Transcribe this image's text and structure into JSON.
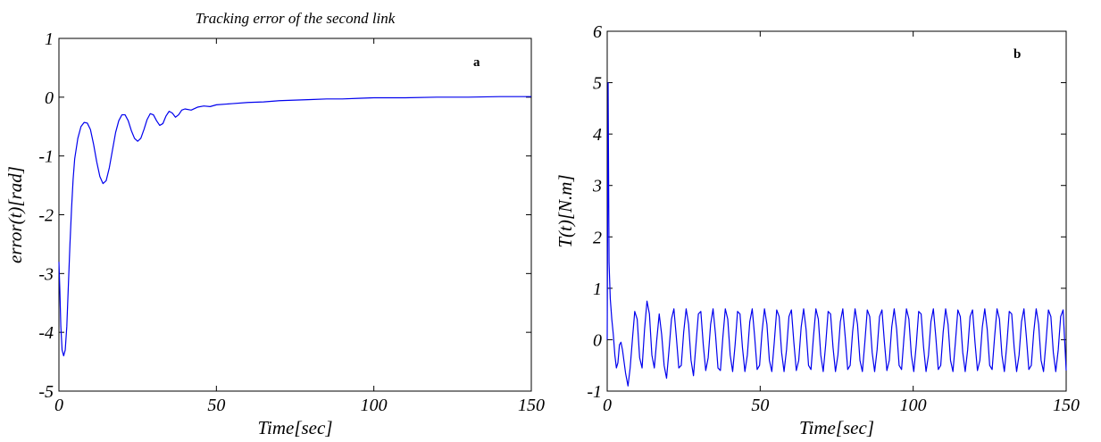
{
  "chart_data": [
    {
      "type": "line",
      "title": "Tracking error of the second link",
      "panel_label": "a",
      "xlabel": "Time[sec]",
      "ylabel": "error(t)[rad]",
      "xlim": [
        0,
        150
      ],
      "ylim": [
        -5,
        1
      ],
      "xticks": [
        0,
        50,
        100,
        150
      ],
      "yticks": [
        -5,
        -4,
        -3,
        -2,
        -1,
        0,
        1
      ],
      "grid": false,
      "series": [
        {
          "color": "#0000ee",
          "points": [
            [
              0,
              -2.8
            ],
            [
              0.3,
              -3.3
            ],
            [
              0.6,
              -3.9
            ],
            [
              1.0,
              -4.3
            ],
            [
              1.5,
              -4.4
            ],
            [
              2.0,
              -4.3
            ],
            [
              2.5,
              -3.9
            ],
            [
              3.0,
              -3.2
            ],
            [
              3.5,
              -2.5
            ],
            [
              4.0,
              -1.9
            ],
            [
              4.5,
              -1.4
            ],
            [
              5.0,
              -1.05
            ],
            [
              6.0,
              -0.7
            ],
            [
              7.0,
              -0.5
            ],
            [
              8.0,
              -0.43
            ],
            [
              9.0,
              -0.44
            ],
            [
              10.0,
              -0.55
            ],
            [
              11.0,
              -0.8
            ],
            [
              12.0,
              -1.1
            ],
            [
              13.0,
              -1.35
            ],
            [
              14.0,
              -1.47
            ],
            [
              15.0,
              -1.42
            ],
            [
              16.0,
              -1.2
            ],
            [
              17.0,
              -0.9
            ],
            [
              18.0,
              -0.6
            ],
            [
              19.0,
              -0.4
            ],
            [
              20.0,
              -0.3
            ],
            [
              21.0,
              -0.3
            ],
            [
              22.0,
              -0.4
            ],
            [
              23.0,
              -0.57
            ],
            [
              24.0,
              -0.7
            ],
            [
              25.0,
              -0.75
            ],
            [
              26.0,
              -0.7
            ],
            [
              27.0,
              -0.55
            ],
            [
              28.0,
              -0.38
            ],
            [
              29.0,
              -0.28
            ],
            [
              30.0,
              -0.3
            ],
            [
              31.0,
              -0.4
            ],
            [
              32.0,
              -0.48
            ],
            [
              33.0,
              -0.45
            ],
            [
              34.0,
              -0.32
            ],
            [
              35.0,
              -0.24
            ],
            [
              36.0,
              -0.27
            ],
            [
              37.0,
              -0.34
            ],
            [
              38.0,
              -0.3
            ],
            [
              39.0,
              -0.22
            ],
            [
              40.0,
              -0.2
            ],
            [
              42,
              -0.22
            ],
            [
              44,
              -0.17
            ],
            [
              46,
              -0.15
            ],
            [
              48,
              -0.16
            ],
            [
              50,
              -0.13
            ],
            [
              55,
              -0.11
            ],
            [
              60,
              -0.09
            ],
            [
              65,
              -0.08
            ],
            [
              70,
              -0.06
            ],
            [
              75,
              -0.05
            ],
            [
              80,
              -0.04
            ],
            [
              85,
              -0.03
            ],
            [
              90,
              -0.03
            ],
            [
              95,
              -0.02
            ],
            [
              100,
              -0.01
            ],
            [
              110,
              -0.01
            ],
            [
              120,
              0.0
            ],
            [
              130,
              0.0
            ],
            [
              140,
              0.01
            ],
            [
              150,
              0.01
            ]
          ]
        }
      ]
    },
    {
      "type": "line",
      "title": "",
      "panel_label": "b",
      "xlabel": "Time[sec]",
      "ylabel": "T(t)[N.m]",
      "xlim": [
        0,
        150
      ],
      "ylim": [
        -1,
        6
      ],
      "xticks": [
        0,
        50,
        100,
        150
      ],
      "yticks": [
        -1,
        0,
        1,
        2,
        3,
        4,
        5,
        6
      ],
      "grid": false,
      "series": [
        {
          "color": "#0000ee",
          "points": [
            [
              0,
              0.0
            ],
            [
              0.3,
              5.0
            ],
            [
              0.6,
              1.5
            ],
            [
              1.0,
              0.8
            ],
            [
              1.5,
              0.4
            ],
            [
              2.0,
              0.1
            ],
            [
              2.5,
              -0.3
            ],
            [
              3.0,
              -0.55
            ],
            [
              3.5,
              -0.45
            ],
            [
              4.0,
              -0.1
            ],
            [
              4.5,
              -0.05
            ],
            [
              5.0,
              -0.2
            ],
            [
              6.0,
              -0.65
            ],
            [
              6.8,
              -0.9
            ],
            [
              7.5,
              -0.55
            ],
            [
              8.3,
              0.05
            ],
            [
              9.0,
              0.55
            ],
            [
              9.8,
              0.4
            ],
            [
              10.6,
              -0.35
            ],
            [
              11.4,
              -0.55
            ],
            [
              12.2,
              0.2
            ],
            [
              13.0,
              0.75
            ],
            [
              13.8,
              0.5
            ],
            [
              14.6,
              -0.3
            ],
            [
              15.4,
              -0.55
            ],
            [
              16.2,
              0.0
            ],
            [
              17.0,
              0.5
            ],
            [
              17.8,
              0.1
            ],
            [
              18.6,
              -0.5
            ],
            [
              19.4,
              -0.75
            ],
            [
              20.2,
              -0.2
            ],
            [
              21.0,
              0.4
            ],
            [
              21.8,
              0.6
            ],
            [
              22.6,
              0.05
            ],
            [
              23.4,
              -0.55
            ],
            [
              24.2,
              -0.5
            ],
            [
              25.0,
              0.15
            ],
            [
              25.8,
              0.6
            ],
            [
              26.6,
              0.3
            ],
            [
              27.4,
              -0.4
            ],
            [
              28.2,
              -0.7
            ],
            [
              29.0,
              -0.1
            ],
            [
              29.8,
              0.5
            ],
            [
              30.6,
              0.55
            ],
            [
              31.4,
              -0.1
            ],
            [
              32.2,
              -0.6
            ],
            [
              33.0,
              -0.35
            ],
            [
              33.8,
              0.3
            ],
            [
              34.6,
              0.6
            ],
            [
              35.4,
              0.1
            ],
            [
              36.2,
              -0.55
            ],
            [
              37.0,
              -0.6
            ],
            [
              37.8,
              0.05
            ],
            [
              38.6,
              0.6
            ],
            [
              39.4,
              0.4
            ],
            [
              40.2,
              -0.3
            ],
            [
              41.0,
              -0.62
            ],
            [
              41.8,
              -0.1
            ],
            [
              42.6,
              0.55
            ],
            [
              43.4,
              0.5
            ],
            [
              44.2,
              -0.15
            ],
            [
              45.0,
              -0.62
            ],
            [
              45.8,
              -0.3
            ],
            [
              46.6,
              0.35
            ],
            [
              47.4,
              0.6
            ],
            [
              48.2,
              0.05
            ],
            [
              49.0,
              -0.58
            ],
            [
              49.8,
              -0.5
            ],
            [
              50.6,
              0.15
            ],
            [
              51.4,
              0.6
            ],
            [
              52.2,
              0.3
            ],
            [
              53.0,
              -0.4
            ],
            [
              53.8,
              -0.62
            ],
            [
              54.6,
              -0.05
            ],
            [
              55.4,
              0.58
            ],
            [
              56.2,
              0.45
            ],
            [
              57.0,
              -0.25
            ],
            [
              57.8,
              -0.62
            ],
            [
              58.6,
              -0.2
            ],
            [
              59.4,
              0.45
            ],
            [
              60.2,
              0.58
            ],
            [
              61.0,
              -0.05
            ],
            [
              61.8,
              -0.6
            ],
            [
              62.6,
              -0.4
            ],
            [
              63.4,
              0.25
            ],
            [
              64.2,
              0.6
            ],
            [
              65.0,
              0.2
            ],
            [
              65.8,
              -0.5
            ],
            [
              66.6,
              -0.58
            ],
            [
              67.4,
              0.05
            ],
            [
              68.2,
              0.6
            ],
            [
              69.0,
              0.4
            ],
            [
              69.8,
              -0.3
            ],
            [
              70.6,
              -0.62
            ],
            [
              71.4,
              -0.1
            ],
            [
              72.2,
              0.55
            ],
            [
              73.0,
              0.5
            ],
            [
              73.8,
              -0.15
            ],
            [
              74.6,
              -0.62
            ],
            [
              75.4,
              -0.3
            ],
            [
              76.2,
              0.35
            ],
            [
              77.0,
              0.6
            ],
            [
              77.8,
              0.05
            ],
            [
              78.6,
              -0.58
            ],
            [
              79.4,
              -0.5
            ],
            [
              80.2,
              0.15
            ],
            [
              81.0,
              0.6
            ],
            [
              81.8,
              0.3
            ],
            [
              82.6,
              -0.4
            ],
            [
              83.4,
              -0.62
            ],
            [
              84.2,
              -0.05
            ],
            [
              85.0,
              0.58
            ],
            [
              85.8,
              0.45
            ],
            [
              86.6,
              -0.25
            ],
            [
              87.4,
              -0.62
            ],
            [
              88.2,
              -0.2
            ],
            [
              89.0,
              0.45
            ],
            [
              89.8,
              0.58
            ],
            [
              90.6,
              -0.05
            ],
            [
              91.4,
              -0.6
            ],
            [
              92.2,
              -0.4
            ],
            [
              93.0,
              0.25
            ],
            [
              93.8,
              0.6
            ],
            [
              94.6,
              0.2
            ],
            [
              95.4,
              -0.5
            ],
            [
              96.2,
              -0.58
            ],
            [
              97.0,
              0.05
            ],
            [
              97.8,
              0.6
            ],
            [
              98.6,
              0.4
            ],
            [
              99.4,
              -0.3
            ],
            [
              100.2,
              -0.62
            ],
            [
              101.0,
              -0.1
            ],
            [
              101.8,
              0.55
            ],
            [
              102.6,
              0.5
            ],
            [
              103.4,
              -0.15
            ],
            [
              104.2,
              -0.62
            ],
            [
              105.0,
              -0.3
            ],
            [
              105.8,
              0.35
            ],
            [
              106.6,
              0.6
            ],
            [
              107.4,
              0.05
            ],
            [
              108.2,
              -0.58
            ],
            [
              109.0,
              -0.5
            ],
            [
              109.8,
              0.15
            ],
            [
              110.6,
              0.6
            ],
            [
              111.4,
              0.3
            ],
            [
              112.2,
              -0.4
            ],
            [
              113.0,
              -0.62
            ],
            [
              113.8,
              -0.05
            ],
            [
              114.6,
              0.58
            ],
            [
              115.4,
              0.45
            ],
            [
              116.2,
              -0.25
            ],
            [
              117.0,
              -0.62
            ],
            [
              117.8,
              -0.2
            ],
            [
              118.6,
              0.45
            ],
            [
              119.4,
              0.58
            ],
            [
              120.2,
              -0.05
            ],
            [
              121.0,
              -0.6
            ],
            [
              121.8,
              -0.4
            ],
            [
              122.6,
              0.25
            ],
            [
              123.4,
              0.6
            ],
            [
              124.2,
              0.2
            ],
            [
              125.0,
              -0.5
            ],
            [
              125.8,
              -0.58
            ],
            [
              126.6,
              0.05
            ],
            [
              127.4,
              0.6
            ],
            [
              128.2,
              0.4
            ],
            [
              129.0,
              -0.3
            ],
            [
              129.8,
              -0.62
            ],
            [
              130.6,
              -0.1
            ],
            [
              131.4,
              0.55
            ],
            [
              132.2,
              0.5
            ],
            [
              133.0,
              -0.15
            ],
            [
              133.8,
              -0.62
            ],
            [
              134.6,
              -0.3
            ],
            [
              135.4,
              0.35
            ],
            [
              136.2,
              0.6
            ],
            [
              137.0,
              0.05
            ],
            [
              137.8,
              -0.58
            ],
            [
              138.6,
              -0.5
            ],
            [
              139.4,
              0.15
            ],
            [
              140.2,
              0.6
            ],
            [
              141.0,
              0.3
            ],
            [
              141.8,
              -0.4
            ],
            [
              142.6,
              -0.62
            ],
            [
              143.4,
              -0.05
            ],
            [
              144.2,
              0.58
            ],
            [
              145.0,
              0.45
            ],
            [
              145.8,
              -0.25
            ],
            [
              146.6,
              -0.62
            ],
            [
              147.4,
              -0.2
            ],
            [
              148.2,
              0.45
            ],
            [
              149.0,
              0.58
            ],
            [
              150.0,
              -0.6
            ]
          ]
        }
      ]
    }
  ]
}
